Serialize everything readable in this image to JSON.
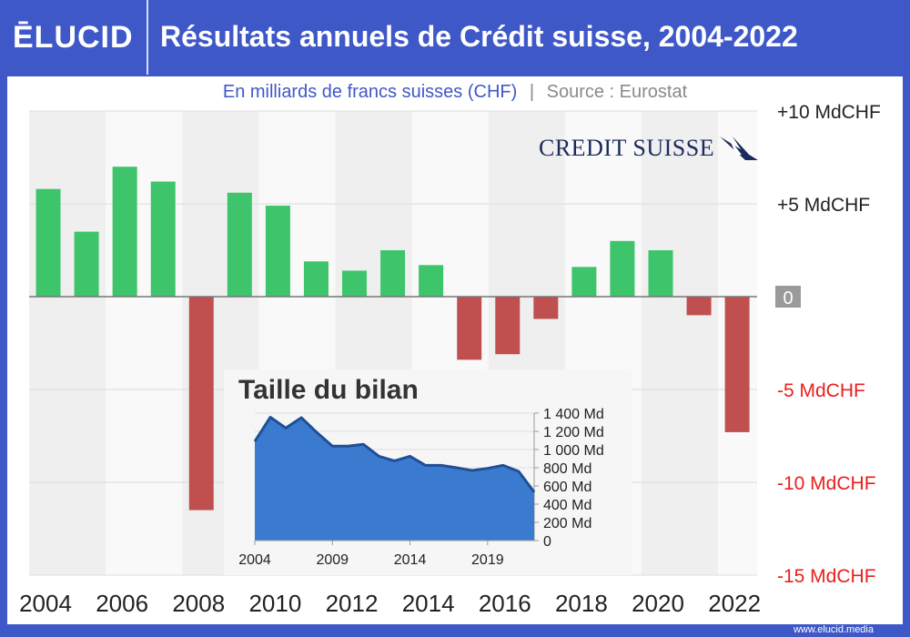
{
  "header": {
    "logo": "ĒLUCID",
    "title": "Résultats annuels de Crédit suisse, 2004-2022"
  },
  "subtitle": {
    "units": "En milliards de francs suisses (CHF)",
    "separator": "|",
    "source": "Source : Eurostat"
  },
  "brand": {
    "name": "CREDIT SUISSE"
  },
  "footer": {
    "url": "www.elucid.media"
  },
  "colors": {
    "positive": "#3ec46a",
    "negative": "#c0504f",
    "area": "#3a7bd0",
    "area_line": "#1f4f96",
    "frame": "#3f58c8"
  },
  "chart_data": [
    {
      "type": "bar",
      "title": "Résultats annuels de Crédit suisse, 2004-2022",
      "ylabel": "En milliards de francs suisses (CHF)",
      "ylim": [
        -15,
        10
      ],
      "yticks": [
        {
          "v": 10,
          "label": "+10 MdCHF"
        },
        {
          "v": 5,
          "label": "+5 MdCHF"
        },
        {
          "v": 0,
          "label": "0"
        },
        {
          "v": -5,
          "label": "-5 MdCHF"
        },
        {
          "v": -10,
          "label": "-10 MdCHF"
        },
        {
          "v": -15,
          "label": "-15 MdCHF"
        }
      ],
      "categories": [
        "2004",
        "2005",
        "2006",
        "2007",
        "2008",
        "2009",
        "2010",
        "2011",
        "2012",
        "2013",
        "2014",
        "2015",
        "2016",
        "2017",
        "2018",
        "2019",
        "2020",
        "2021",
        "2022"
      ],
      "xtick_labels": [
        "2004",
        "2006",
        "2008",
        "2010",
        "2012",
        "2014",
        "2016",
        "2018",
        "2020",
        "2022"
      ],
      "values": [
        5.8,
        3.5,
        7.0,
        6.2,
        -11.5,
        5.6,
        4.9,
        1.9,
        1.4,
        2.5,
        1.7,
        -3.4,
        -3.1,
        -1.2,
        1.6,
        3.0,
        2.5,
        -1.0,
        -7.3
      ]
    },
    {
      "type": "area",
      "title": "Taille du bilan",
      "ylim": [
        0,
        1400
      ],
      "yticks": [
        {
          "v": 1400,
          "label": "1 400 Md"
        },
        {
          "v": 1200,
          "label": "1 200 Md"
        },
        {
          "v": 1000,
          "label": "1 000 Md"
        },
        {
          "v": 800,
          "label": "800 Md"
        },
        {
          "v": 600,
          "label": "600 Md"
        },
        {
          "v": 400,
          "label": "400 Md"
        },
        {
          "v": 200,
          "label": "200 Md"
        },
        {
          "v": 0,
          "label": "0"
        }
      ],
      "xticks": [
        "2004",
        "2009",
        "2014",
        "2019"
      ],
      "x": [
        2004,
        2005,
        2006,
        2007,
        2008,
        2009,
        2010,
        2011,
        2012,
        2013,
        2014,
        2015,
        2016,
        2017,
        2018,
        2019,
        2020,
        2021,
        2022
      ],
      "values": [
        1090,
        1355,
        1237,
        1350,
        1187,
        1037,
        1037,
        1057,
        926,
        876,
        926,
        826,
        826,
        800,
        770,
        793,
        826,
        760,
        532
      ]
    }
  ]
}
